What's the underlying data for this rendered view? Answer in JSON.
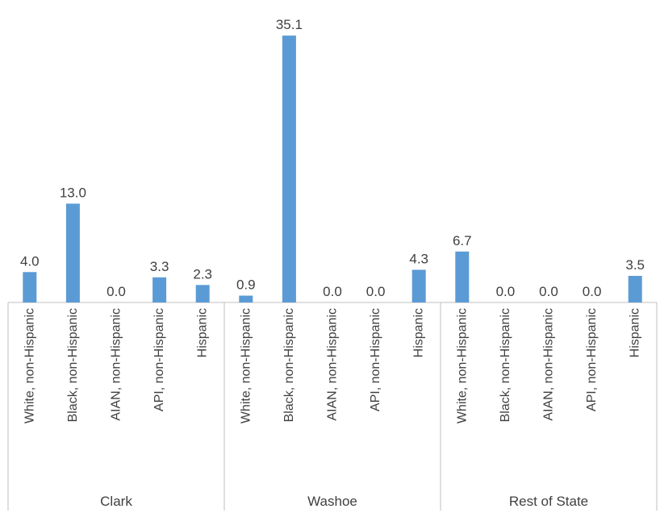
{
  "chart_data": {
    "type": "bar",
    "title": "",
    "xlabel": "",
    "ylabel": "",
    "ylim": [
      0,
      36
    ],
    "bar_color": "#5b9bd5",
    "label_precision": 1,
    "groups": [
      {
        "name": "Clark",
        "categories": [
          "White, non-Hispanic",
          "Black, non-Hispanic",
          "AIAN, non-Hispanic",
          "API, non-Hispanic",
          "Hispanic"
        ],
        "values": [
          4.0,
          13.0,
          0.0,
          3.3,
          2.3
        ]
      },
      {
        "name": "Washoe",
        "categories": [
          "White, non-Hispanic",
          "Black, non-Hispanic",
          "AIAN, non-Hispanic",
          "API, non-Hispanic",
          "Hispanic"
        ],
        "values": [
          0.9,
          35.1,
          0.0,
          0.0,
          4.3
        ]
      },
      {
        "name": "Rest of State",
        "categories": [
          "White, non-Hispanic",
          "Black, non-Hispanic",
          "AIAN, non-Hispanic",
          "API, non-Hispanic",
          "Hispanic"
        ],
        "values": [
          6.7,
          0.0,
          0.0,
          0.0,
          3.5
        ]
      }
    ]
  }
}
